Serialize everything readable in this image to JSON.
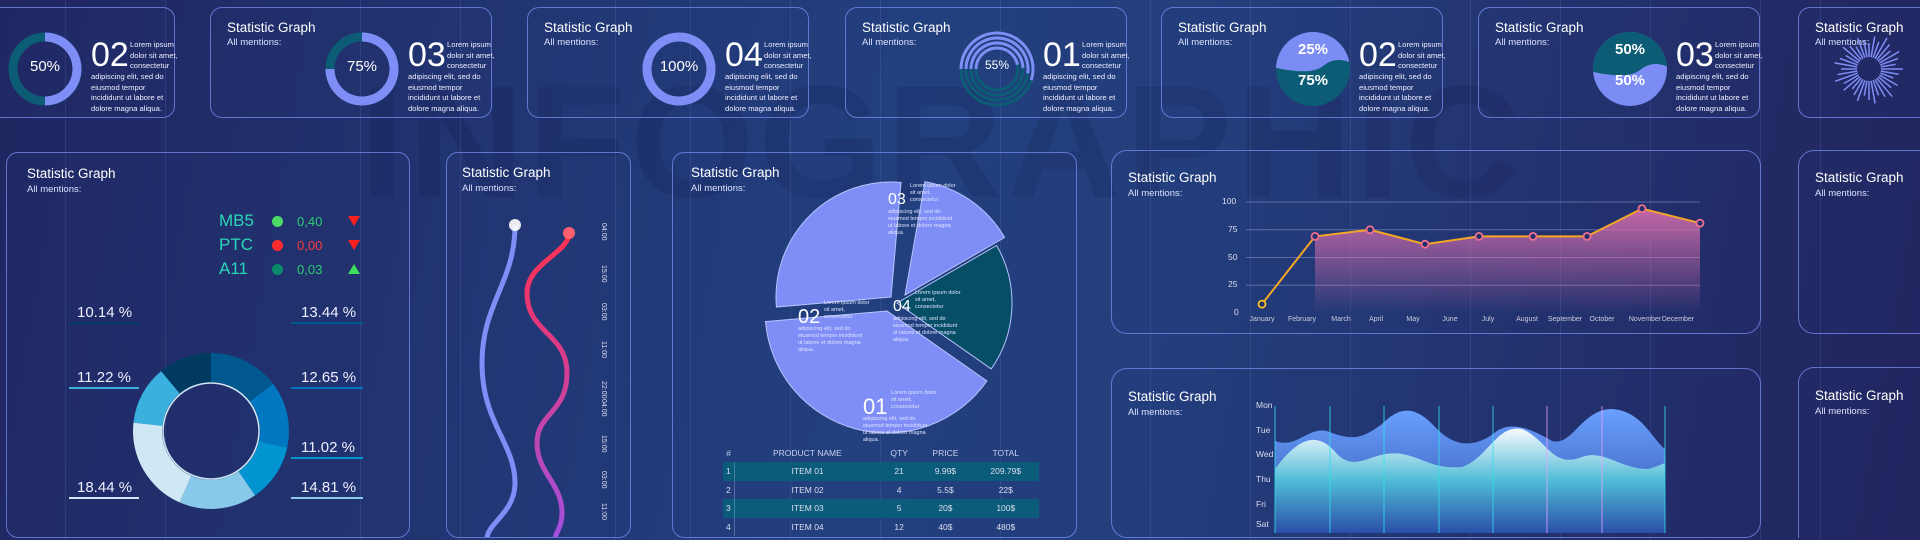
{
  "watermark": "INFOGRAPHIC",
  "card_title": "Statistic Graph",
  "card_subtitle": "All mentions:",
  "top_cards": [
    {
      "gauge": "ring",
      "label": "50%",
      "value": 50,
      "number": "02",
      "text_first": "Lorem ipsum dolor sit amet, consectetur",
      "text_rest": "adipiscing elit, sed do eiusmod tempor incididunt ut labore et dolore magna aliqua.",
      "show_title": false
    },
    {
      "gauge": "ring",
      "label": "75%",
      "value": 75,
      "number": "03",
      "text_first": "Lorem ipsum dolor sit amet, consectetur",
      "text_rest": "adipiscing elit, sed do eiusmod tempor incididunt ut labore et dolore magna aliqua.",
      "show_title": true
    },
    {
      "gauge": "ring",
      "label": "100%",
      "value": 100,
      "number": "04",
      "text_first": "Lorem ipsum dolor sit amet, consectetur",
      "text_rest": "adipiscing elit, sed do eiusmod tempor incididunt ut labore et dolore magna aliqua.",
      "show_title": true
    },
    {
      "gauge": "multiring",
      "label": "55%",
      "value": 55,
      "number": "01",
      "text_first": "Lorem ipsum dolor sit amet, consectetur",
      "text_rest": "adipiscing elit, sed do eiusmod tempor incididunt ut labore et dolore magna aliqua.",
      "show_title": true
    },
    {
      "gauge": "split",
      "top_label": "25%",
      "bottom_label": "75%",
      "top_color": "#7b8cf5",
      "bottom_color": "#0b5c74",
      "number": "02",
      "text_first": "Lorem ipsum dolor sit amet, consectetur",
      "text_rest": "adipiscing elit, sed do eiusmod tempor incididunt ut labore et dolore magna aliqua.",
      "show_title": true
    },
    {
      "gauge": "split",
      "top_label": "50%",
      "bottom_label": "50%",
      "top_color": "#0b5c74",
      "bottom_color": "#7b8cf5",
      "number": "03",
      "text_first": "Lorem ipsum dolor sit amet, consectetur",
      "text_rest": "adipiscing elit, sed do eiusmod tempor incididunt ut labore et dolore magna aliqua.",
      "show_title": true
    },
    {
      "gauge": "burst",
      "show_title": true
    }
  ],
  "tickers": [
    {
      "name": "MB5",
      "dot": "#4cd964",
      "value": "0,40",
      "value_color": "#2ecc71",
      "trend": "down",
      "trend_color": "#ff2020"
    },
    {
      "name": "PTC",
      "dot": "#ff2a2a",
      "value": "0,00",
      "value_color": "#ff3b3b",
      "trend": "down",
      "trend_color": "#ff2020"
    },
    {
      "name": "A11",
      "dot": "#0a8a6a",
      "value": "0,03",
      "value_color": "#2ecc71",
      "trend": "up",
      "trend_color": "#3ddc5a"
    }
  ],
  "chart_data": [
    {
      "type": "pie",
      "variant": "donut",
      "values": [
        13.44,
        12.65,
        11.02,
        14.81,
        18.44,
        11.22,
        10.14
      ],
      "labels": [
        "13.44 %",
        "12.65 %",
        "11.02 %",
        "14.81 %",
        "18.44 %",
        "11.22 %",
        "10.14 %"
      ],
      "colors": [
        "#00588f",
        "#0077c0",
        "#0095d0",
        "#88c8e8",
        "#cfe8f5",
        "#3ab0de",
        "#003a60"
      ]
    },
    {
      "type": "line",
      "variant": "wave",
      "series": [
        {
          "color": "#7b8cf5"
        },
        {
          "color": "#ff3050"
        }
      ],
      "tick_labels": [
        "04:00",
        "15:00",
        "03:00",
        "11:00",
        "22:00",
        "04:00",
        "15:00",
        "03:00",
        "11:00"
      ]
    },
    {
      "type": "pie",
      "values": [
        38,
        26,
        13,
        23
      ],
      "labels": [
        "01",
        "02",
        "03",
        "04"
      ],
      "colors": [
        "#7e8ef6",
        "#7e8ef6",
        "#7e8ef6",
        "#064d66"
      ],
      "text_first": "Lorem ipsum dolor sit amet, consectetur",
      "text_rest": "adipiscing elit, sed do eiusmod tempor incididunt ut labore et dolore magna aliqua."
    },
    {
      "type": "table",
      "columns": [
        "#",
        "PRODUCT NAME",
        "QTY",
        "PRICE",
        "TOTAL"
      ],
      "rows": [
        [
          "1",
          "ITEM 01",
          "21",
          "9.99$",
          "209.79$"
        ],
        [
          "2",
          "ITEM 02",
          "4",
          "5.5$",
          "22$"
        ],
        [
          "3",
          "ITEM 03",
          "5",
          "20$",
          "100$"
        ],
        [
          "4",
          "ITEM 04",
          "12",
          "40$",
          "480$"
        ]
      ]
    },
    {
      "type": "line",
      "ylim": [
        0,
        100
      ],
      "yticks": [
        "100",
        "75",
        "50",
        "25",
        "0"
      ],
      "x_labels": [
        "January",
        "February",
        "March",
        "April",
        "May",
        "June",
        "July",
        "August",
        "September",
        "October",
        "November",
        "December"
      ],
      "values": [
        8,
        69,
        75,
        62,
        69,
        69,
        69,
        94,
        81
      ],
      "grid": true,
      "line_color": "#f5a623",
      "fill_color": "#e070b0"
    },
    {
      "type": "area",
      "y_labels": [
        "Mon",
        "Tue",
        "Wed",
        "Thu",
        "Fri",
        "Sat"
      ],
      "series": [
        {
          "color": "#5b8ef5"
        },
        {
          "color": "#bff0f6"
        }
      ]
    }
  ]
}
